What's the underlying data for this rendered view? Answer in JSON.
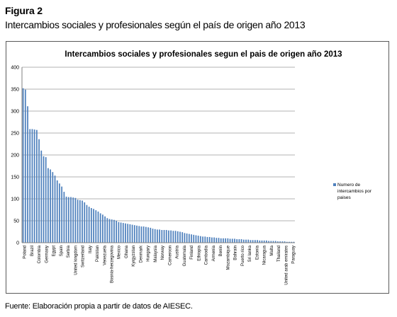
{
  "figure": {
    "label": "Figura 2",
    "subtitle": "Intercambios sociales y profesionales según el país de origen año 2013",
    "source": "Fuente: Elaboración propia a partir de datos de AIESEC."
  },
  "colors": {
    "bar": "#4f81bd",
    "grid": "#9a9a9a",
    "axis": "#7f7f7f",
    "frame": "#5a5a5a"
  },
  "chart_data": {
    "type": "bar",
    "title": "Intercambios sociales y  profesionales segun el pais de origen año 2013",
    "xlabel": "",
    "ylabel": "",
    "ylim": [
      0,
      400
    ],
    "yticks": [
      0,
      50,
      100,
      150,
      200,
      250,
      300,
      350,
      400
    ],
    "grid": true,
    "legend_position": "right",
    "series": [
      {
        "name": "Numero de intercambios por paises",
        "values": [
          352,
          349,
          311,
          259,
          259,
          258,
          257,
          236,
          210,
          197,
          195,
          170,
          167,
          161,
          153,
          142,
          135,
          128,
          116,
          105,
          104,
          104,
          103,
          102,
          98,
          97,
          96,
          92,
          86,
          82,
          79,
          77,
          74,
          71,
          67,
          64,
          60,
          56,
          54,
          53,
          52,
          50,
          47,
          46,
          45,
          44,
          43,
          42,
          41,
          40,
          39,
          38,
          37,
          37,
          36,
          35,
          34,
          32,
          31,
          30,
          30,
          29,
          29,
          29,
          28,
          28,
          27,
          27,
          26,
          25,
          24,
          22,
          21,
          20,
          19,
          18,
          17,
          16,
          15,
          14,
          14,
          13,
          13,
          12,
          12,
          11,
          11,
          10,
          10,
          10,
          10,
          9,
          9,
          9,
          8,
          8,
          8,
          7,
          7,
          7,
          6,
          6,
          6,
          6,
          5,
          5,
          5,
          5,
          4,
          4,
          4,
          4,
          3,
          3,
          3,
          3,
          2,
          2,
          2,
          2
        ]
      }
    ],
    "x_labels": [
      "Poland",
      "Brazil",
      "Colombia",
      "Germany",
      "Egypt",
      "Spain",
      "Serbia",
      "United kingdom",
      "Switzerland",
      "Italy",
      "Pakistan",
      "Venezuela",
      "Bosnia-herzegovina",
      "Mexico",
      "Ghana",
      "Kyrgyzstan",
      "Denmark",
      "Hungary",
      "Malaysia",
      "Norway",
      "Cameroon",
      "Austria",
      "Guatemala",
      "Finland",
      "Ethiopia",
      "Cambodia",
      "Armenia",
      "Benin",
      "Mozambique",
      "Bahrain",
      "Puerto rico",
      "Sri lanka",
      "Estonia",
      "Nicaragua",
      "Malta",
      "Thailand",
      "United arab emirates",
      "Paraguay"
    ]
  }
}
